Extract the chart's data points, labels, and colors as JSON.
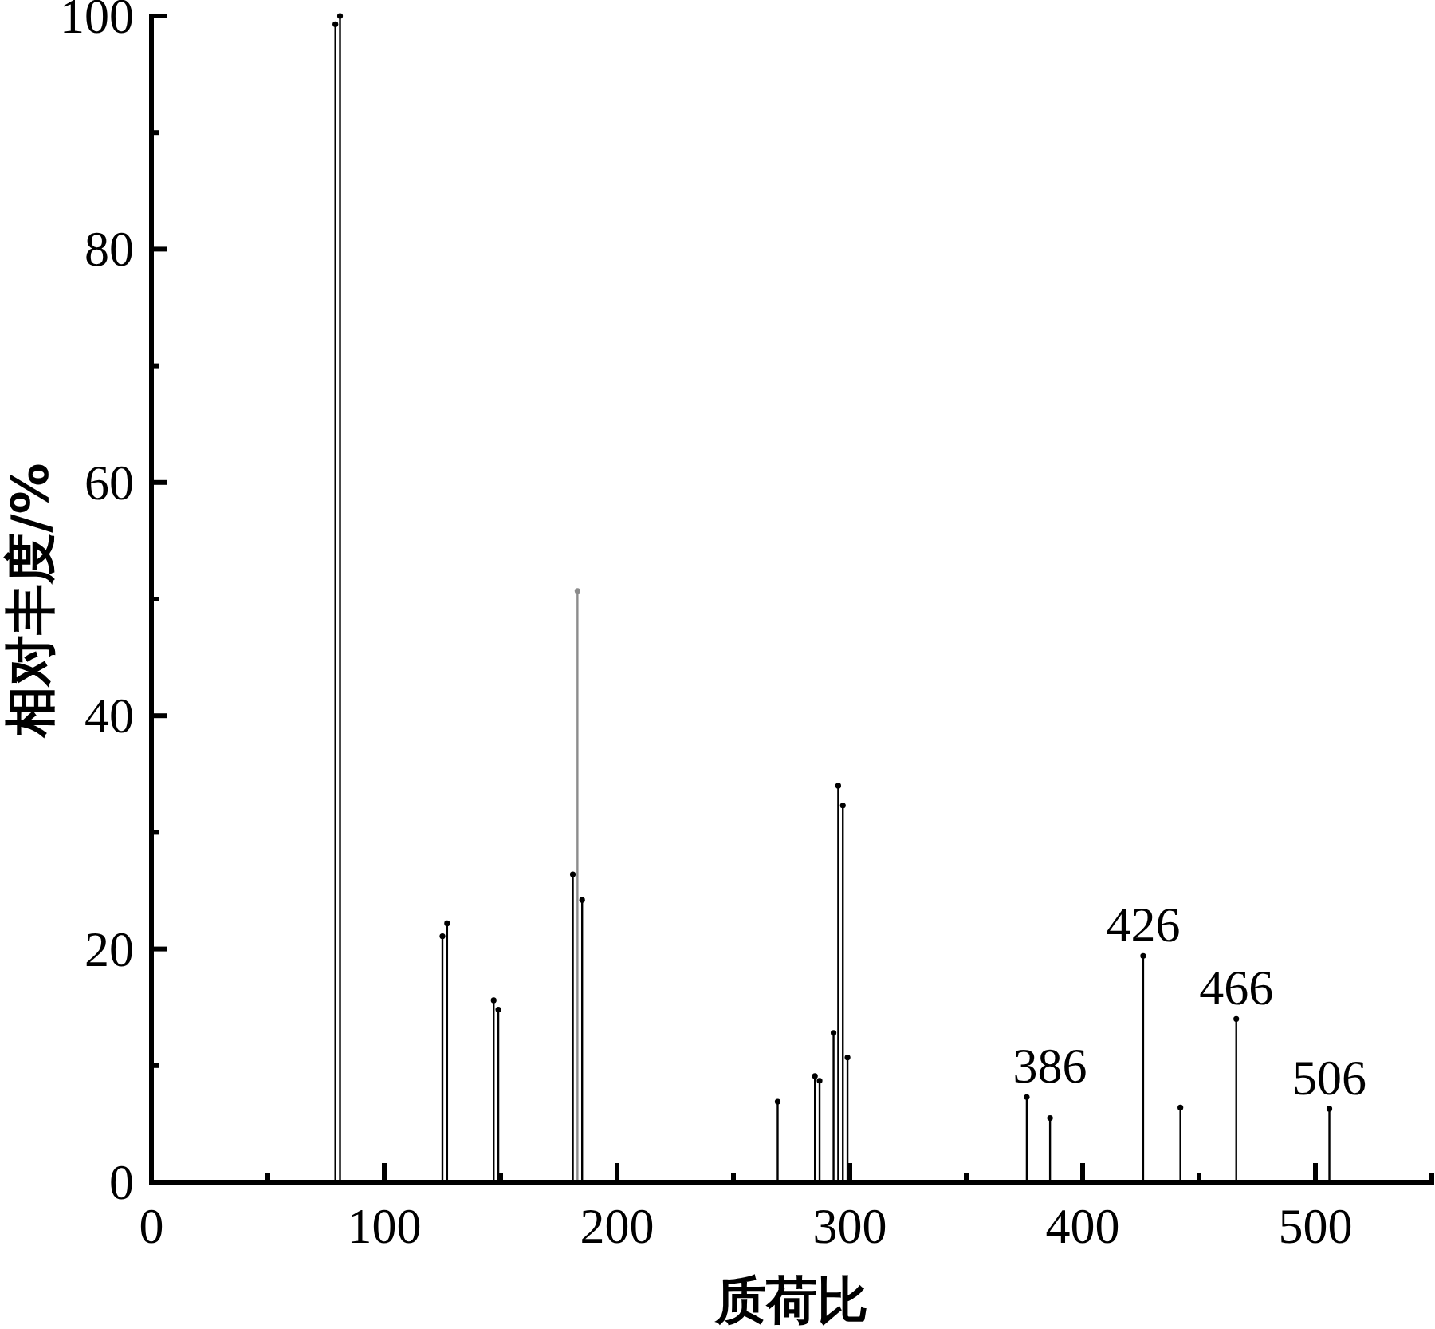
{
  "chart_data": {
    "type": "lollipop",
    "xlabel": "质荷比",
    "ylabel": "相对丰度/%",
    "x": [
      79,
      81,
      125,
      127,
      147,
      149,
      181,
      183,
      185,
      269,
      285,
      287,
      293,
      295,
      297,
      299,
      376,
      386,
      426,
      442,
      466,
      506
    ],
    "values": [
      99.3,
      100,
      21.1,
      22.2,
      15.6,
      14.8,
      26.4,
      50.7,
      24.2,
      6.9,
      9.1,
      8.7,
      12.8,
      34.0,
      32.3,
      10.7,
      7.3,
      5.5,
      19.4,
      6.4,
      14.0,
      6.3
    ],
    "colors": [
      "#000000",
      "#000000",
      "#000000",
      "#000000",
      "#000000",
      "#000000",
      "#000000",
      "#8c8c8c",
      "#000000",
      "#000000",
      "#000000",
      "#000000",
      "#000000",
      "#000000",
      "#000000",
      "#000000",
      "#000000",
      "#000000",
      "#000000",
      "#000000",
      "#000000",
      "#000000"
    ],
    "marker": "circle",
    "xlim": [
      0,
      550
    ],
    "ylim": [
      0,
      100
    ],
    "xticks": [
      0,
      {
        "value": 50,
        "label": null
      },
      100,
      {
        "value": 150,
        "label": null
      },
      200,
      {
        "value": 250,
        "label": null
      },
      300,
      {
        "value": 350,
        "label": null
      },
      400,
      {
        "value": 450,
        "label": null
      },
      500,
      {
        "value": 550,
        "label": null
      }
    ],
    "yticks": [
      0,
      {
        "value": 10,
        "label": null
      },
      20,
      {
        "value": 30,
        "label": null
      },
      40,
      {
        "value": 50,
        "label": null
      },
      60,
      {
        "value": 70,
        "label": null
      },
      80,
      {
        "value": 90,
        "label": null
      },
      100
    ],
    "annotations": [
      {
        "text": "386",
        "x": 386,
        "y": 5.5
      },
      {
        "text": "426",
        "x": 426,
        "y": 19.4
      },
      {
        "text": "466",
        "x": 466,
        "y": 14.0
      },
      {
        "text": "506",
        "x": 506,
        "y": 6.3
      }
    ]
  }
}
